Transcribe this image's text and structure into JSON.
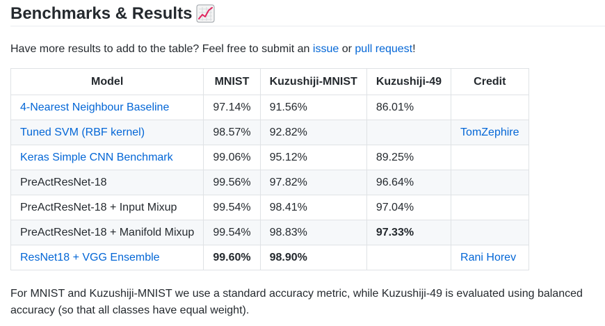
{
  "heading": {
    "title": "Benchmarks & Results",
    "icon": "chart-increasing-icon"
  },
  "intro": {
    "text_before": "Have more results to add to the table? Feel free to submit an ",
    "issue_link": "issue",
    "text_middle": " or ",
    "pull_request_link": "pull request",
    "text_after": "!"
  },
  "table": {
    "headers": [
      "Model",
      "MNIST",
      "Kuzushiji-MNIST",
      "Kuzushiji-49",
      "Credit"
    ],
    "rows": [
      {
        "model": "4-Nearest Neighbour Baseline",
        "model_is_link": true,
        "mnist": "97.14%",
        "kmnist": "91.56%",
        "k49": "86.01%",
        "credit": ""
      },
      {
        "model": "Tuned SVM (RBF kernel)",
        "model_is_link": true,
        "mnist": "98.57%",
        "kmnist": "92.82%",
        "k49": "",
        "credit": "TomZephire"
      },
      {
        "model": "Keras Simple CNN Benchmark",
        "model_is_link": true,
        "mnist": "99.06%",
        "kmnist": "95.12%",
        "k49": "89.25%",
        "credit": ""
      },
      {
        "model": "PreActResNet-18",
        "model_is_link": false,
        "mnist": "99.56%",
        "kmnist": "97.82%",
        "k49": "96.64%",
        "credit": ""
      },
      {
        "model": "PreActResNet-18 + Input Mixup",
        "model_is_link": false,
        "mnist": "99.54%",
        "kmnist": "98.41%",
        "k49": "97.04%",
        "credit": ""
      },
      {
        "model": "PreActResNet-18 + Manifold Mixup",
        "model_is_link": false,
        "mnist": "99.54%",
        "kmnist": "98.83%",
        "k49": "97.33%",
        "k49_bold": true,
        "credit": ""
      },
      {
        "model": "ResNet18 + VGG Ensemble",
        "model_is_link": true,
        "mnist": "99.60%",
        "mnist_bold": true,
        "kmnist": "98.90%",
        "kmnist_bold": true,
        "k49": "",
        "credit": "Rani Horev"
      }
    ]
  },
  "note": {
    "text": "For MNIST and Kuzushiji-MNIST we use a standard accuracy metric, while Kuzushiji-49 is evaluated using balanced accuracy (so that all classes have equal weight)."
  },
  "colors": {
    "link": "#0366d6",
    "text": "#24292e",
    "border": "#dfe2e5",
    "row_alt": "#f6f8fa"
  }
}
